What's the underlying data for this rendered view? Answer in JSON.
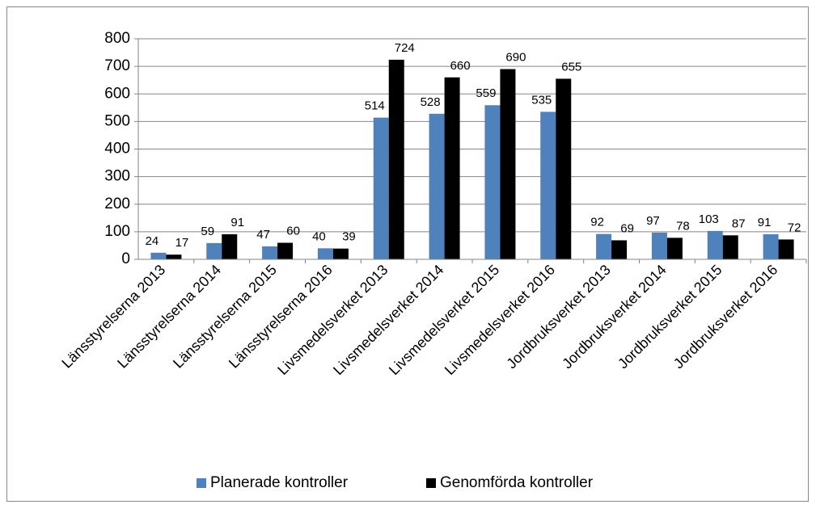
{
  "chart_data": {
    "type": "bar",
    "categories": [
      "Länsstyrelserna 2013",
      "Länsstyrelserna 2014",
      "Länsstyrelserna 2015",
      "Länsstyrelserna 2016",
      "Livsmedelsverket 2013",
      "Livsmedelsverket 2014",
      "Livsmedelsverket 2015",
      "Livsmedelsverket 2016",
      "Jordbruksverket 2013",
      "Jordbruksverket 2014",
      "Jordbruksverket 2015",
      "Jordbruksverket 2016"
    ],
    "series": [
      {
        "name": "Planerade kontroller",
        "color": "#4f81bd",
        "values": [
          24,
          59,
          47,
          40,
          514,
          528,
          559,
          535,
          92,
          97,
          103,
          91
        ]
      },
      {
        "name": "Genomförda kontroller",
        "color": "#000000",
        "values": [
          17,
          91,
          60,
          39,
          724,
          660,
          690,
          655,
          69,
          78,
          87,
          72
        ]
      }
    ],
    "ylim": [
      0,
      800
    ],
    "yticks": [
      0,
      100,
      200,
      300,
      400,
      500,
      600,
      700,
      800
    ],
    "grid": true,
    "legend": "bottom"
  }
}
